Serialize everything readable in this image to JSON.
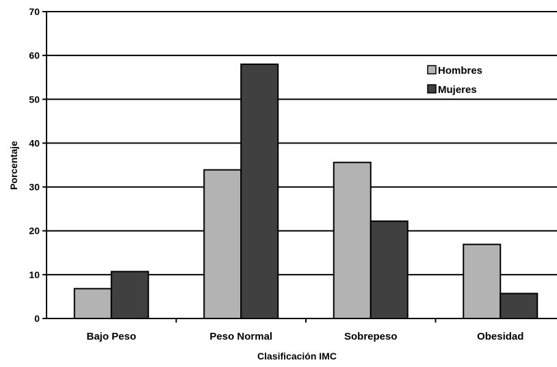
{
  "chart_data": {
    "type": "bar",
    "title": "",
    "xlabel": "Clasificación IMC",
    "ylabel": "Porcentaje",
    "categories": [
      "Bajo Peso",
      "Peso Normal",
      "Sobrepeso",
      "Obesidad"
    ],
    "series": [
      {
        "name": "Hombres",
        "color": "#b3b3b3",
        "values": [
          6.8,
          33.9,
          35.6,
          16.9
        ]
      },
      {
        "name": "Mujeres",
        "color": "#404040",
        "values": [
          10.7,
          58.0,
          22.2,
          5.7
        ]
      }
    ],
    "ylim": [
      0,
      70
    ],
    "yticks": [
      "0",
      "10",
      "20",
      "30",
      "40",
      "50",
      "60",
      "70"
    ],
    "grid": true,
    "legend_position": "top-right"
  }
}
